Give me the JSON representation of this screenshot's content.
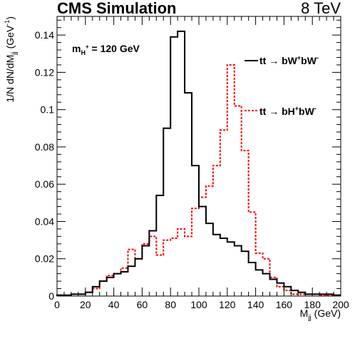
{
  "header": {
    "experiment": "CMS Simulation",
    "energy": "8 TeV"
  },
  "annotation": {
    "main": "m",
    "sub": "H",
    "sup": "+",
    "rest": " = 120 GeV"
  },
  "legend": [
    {
      "pre": "tt ",
      "arrow": "→",
      "mid": " bW",
      "sup1": "+",
      "mid2": "bW",
      "sup2": "-",
      "color": "#000000",
      "dash": false
    },
    {
      "pre": "tt ",
      "arrow": "→",
      "mid": " bH",
      "sup1": "+",
      "mid2": "bW",
      "sup2": "-",
      "color": "#ff0000",
      "dash": true
    }
  ],
  "chart_data": {
    "type": "histogram",
    "bin_width": 5,
    "xlim": [
      0,
      200
    ],
    "ylim": [
      0,
      0.15
    ],
    "xticks": [
      0,
      20,
      40,
      60,
      80,
      100,
      120,
      140,
      160,
      180,
      200
    ],
    "yticks": [
      0,
      0.02,
      0.04,
      0.06,
      0.08,
      0.1,
      0.12,
      0.14
    ],
    "ytick_labels": [
      "0",
      "0.02",
      "0.04",
      "0.06",
      "0.08",
      "0.1",
      "0.12",
      "0.14"
    ],
    "xlabel": {
      "main": "M",
      "sub": "jj",
      "rest": " (GeV)"
    },
    "ylabel": {
      "pre": "1/N dN/dM",
      "sub": "jj",
      "mid": " (GeV",
      "sup": "-1",
      "post": ")"
    },
    "series": [
      {
        "name": "tt → bW+bW-",
        "color": "#000000",
        "style": "solid",
        "bin_edges_start": [
          0,
          5,
          10,
          15,
          20,
          25,
          30,
          35,
          40,
          45,
          50,
          55,
          60,
          65,
          70,
          75,
          80,
          85,
          90,
          95,
          100,
          105,
          110,
          115,
          120,
          125,
          130,
          135,
          140,
          145,
          150,
          155,
          160,
          165,
          170,
          175,
          180,
          185,
          190,
          195
        ],
        "values": [
          0.0005,
          0.0005,
          0.001,
          0.001,
          0.002,
          0.005,
          0.008,
          0.01,
          0.012,
          0.013,
          0.016,
          0.02,
          0.027,
          0.035,
          0.054,
          0.09,
          0.139,
          0.142,
          0.109,
          0.07,
          0.048,
          0.039,
          0.033,
          0.031,
          0.029,
          0.027,
          0.024,
          0.018,
          0.014,
          0.012,
          0.009,
          0.007,
          0.005,
          0.003,
          0.002,
          0.001,
          0.001,
          0.001,
          0.001,
          0.0005
        ]
      },
      {
        "name": "tt → bH+bW-",
        "color": "#ff0000",
        "style": "dashed",
        "bin_edges_start": [
          0,
          5,
          10,
          15,
          20,
          25,
          30,
          35,
          40,
          45,
          50,
          55,
          60,
          65,
          70,
          75,
          80,
          85,
          90,
          95,
          100,
          105,
          110,
          115,
          120,
          125,
          130,
          135,
          140,
          145,
          150,
          155,
          160,
          165,
          170,
          175,
          180,
          185,
          190,
          195
        ],
        "values": [
          0.0005,
          0.0005,
          0.001,
          0.001,
          0.002,
          0.004,
          0.008,
          0.011,
          0.012,
          0.015,
          0.025,
          0.02,
          0.028,
          0.032,
          0.022,
          0.03,
          0.031,
          0.036,
          0.032,
          0.047,
          0.053,
          0.059,
          0.07,
          0.089,
          0.124,
          0.102,
          0.078,
          0.045,
          0.023,
          0.02,
          0.01,
          0.005,
          0.003,
          0.001,
          0.001,
          0.001,
          0.001,
          0.0005,
          0.0005,
          0.0005
        ]
      }
    ]
  }
}
